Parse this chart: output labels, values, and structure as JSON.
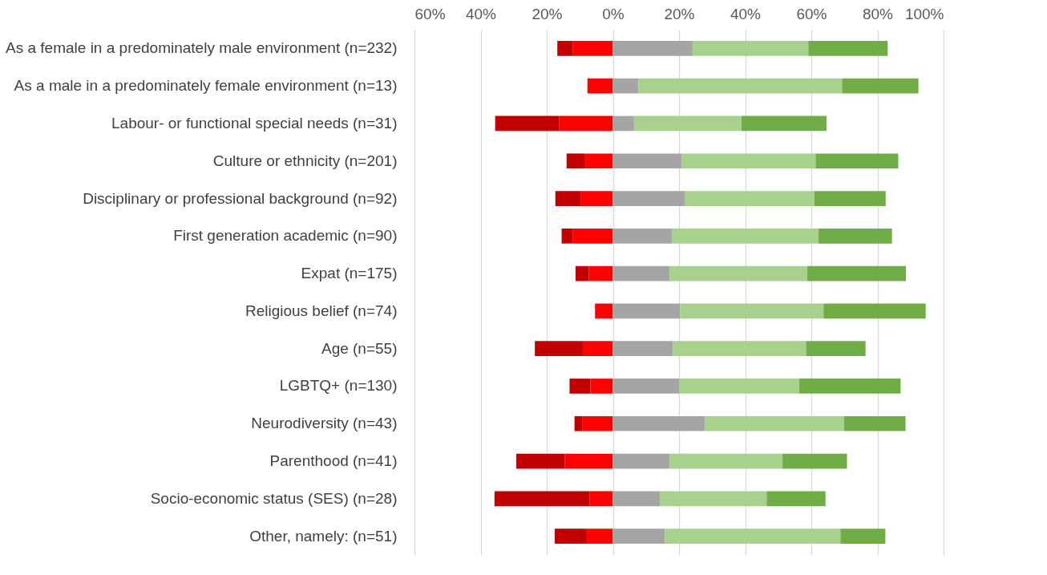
{
  "chart_data": {
    "type": "bar",
    "orientation": "horizontal",
    "stacked": true,
    "grid": "x",
    "categories": [
      "As a female in a predominately male environment (n=232)",
      "As a male in a predominately female environment (n=13)",
      "Labour- or functional special needs (n=31)",
      "Culture or ethnicity (n=201)",
      "Disciplinary or professional background (n=92)",
      "First generation academic (n=90)",
      "Expat (n=175)",
      "Religious belief (n=74)",
      "Age (n=55)",
      "LGBTQ+ (n=130)",
      "Neurodiversity (n=43)",
      "Parenthood (n=41)",
      "Socio-economic status (SES) (n=28)",
      "Other, namely: (n=51)"
    ],
    "xlim": [
      -60,
      100
    ],
    "xticks": [
      {
        "value": -60,
        "label": "60%"
      },
      {
        "value": -40,
        "label": "40%"
      },
      {
        "value": -20,
        "label": "20%"
      },
      {
        "value": 0,
        "label": "0%"
      },
      {
        "value": 20,
        "label": "20%"
      },
      {
        "value": 40,
        "label": "40%"
      },
      {
        "value": 60,
        "label": "60%"
      },
      {
        "value": 80,
        "label": "80%"
      },
      {
        "value": 100,
        "label": "100%"
      }
    ],
    "series": [
      {
        "color": "#ff0000",
        "values": [
          -12.2,
          -7.7,
          -16.2,
          -8.6,
          -9.8,
          -12.2,
          -7.3,
          -5.4,
          -9.1,
          -6.8,
          -9.3,
          -14.6,
          -7.1,
          -7.9
        ]
      },
      {
        "color": "#c00000",
        "values": [
          -4.6,
          null,
          -19.4,
          -5.4,
          -7.6,
          -3.3,
          -4.0,
          null,
          -14.5,
          -6.3,
          -2.3,
          -14.6,
          -28.7,
          -9.7
        ]
      },
      {
        "color": "#a5a5a5",
        "values": [
          24.1,
          7.7,
          6.4,
          20.8,
          21.7,
          17.8,
          17.1,
          20.3,
          18.2,
          20.0,
          27.9,
          17.1,
          14.2,
          15.7
        ]
      },
      {
        "color": "#a9d18e",
        "values": [
          35.0,
          61.6,
          32.5,
          40.5,
          39.2,
          44.4,
          41.7,
          43.4,
          40.2,
          36.3,
          42.0,
          34.2,
          32.3,
          53.1
        ]
      },
      {
        "color": "#70ad47",
        "values": [
          24.0,
          23.1,
          25.7,
          25.0,
          21.6,
          22.2,
          29.8,
          30.9,
          18.0,
          30.7,
          18.6,
          19.5,
          17.8,
          13.6
        ]
      }
    ]
  }
}
